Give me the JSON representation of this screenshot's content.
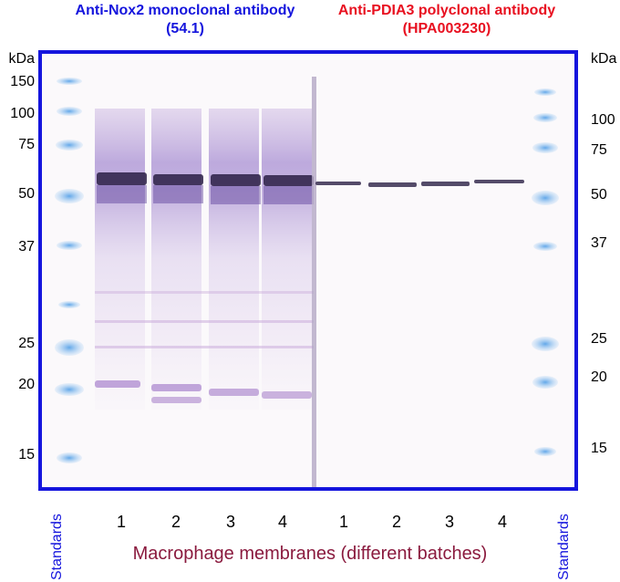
{
  "panels": {
    "left": {
      "title_line1": "Anti-Nox2 monoclonal antibody",
      "title_line2": "(54.1)",
      "title_color": "#1515dd"
    },
    "right": {
      "title_line1": "Anti-PDIA3 polyclonal antibody",
      "title_line2": "(HPA003230)",
      "title_color": "#e81020"
    }
  },
  "markers": {
    "unit": "kDa",
    "left": [
      "150",
      "100",
      "75",
      "50",
      "37",
      "25",
      "20",
      "15"
    ],
    "right": [
      "100",
      "75",
      "50",
      "37",
      "25",
      "20",
      "15"
    ]
  },
  "lanes": {
    "left": [
      "1",
      "2",
      "3",
      "4"
    ],
    "right": [
      "1",
      "2",
      "3",
      "4"
    ]
  },
  "standards_label": "Standards",
  "caption": "Macrophage membranes (different batches)",
  "colors": {
    "frame": "#1515dd",
    "caption": "#8a1a3e",
    "stain": "#6a4aa8",
    "ladder": "#6fb0ea"
  }
}
